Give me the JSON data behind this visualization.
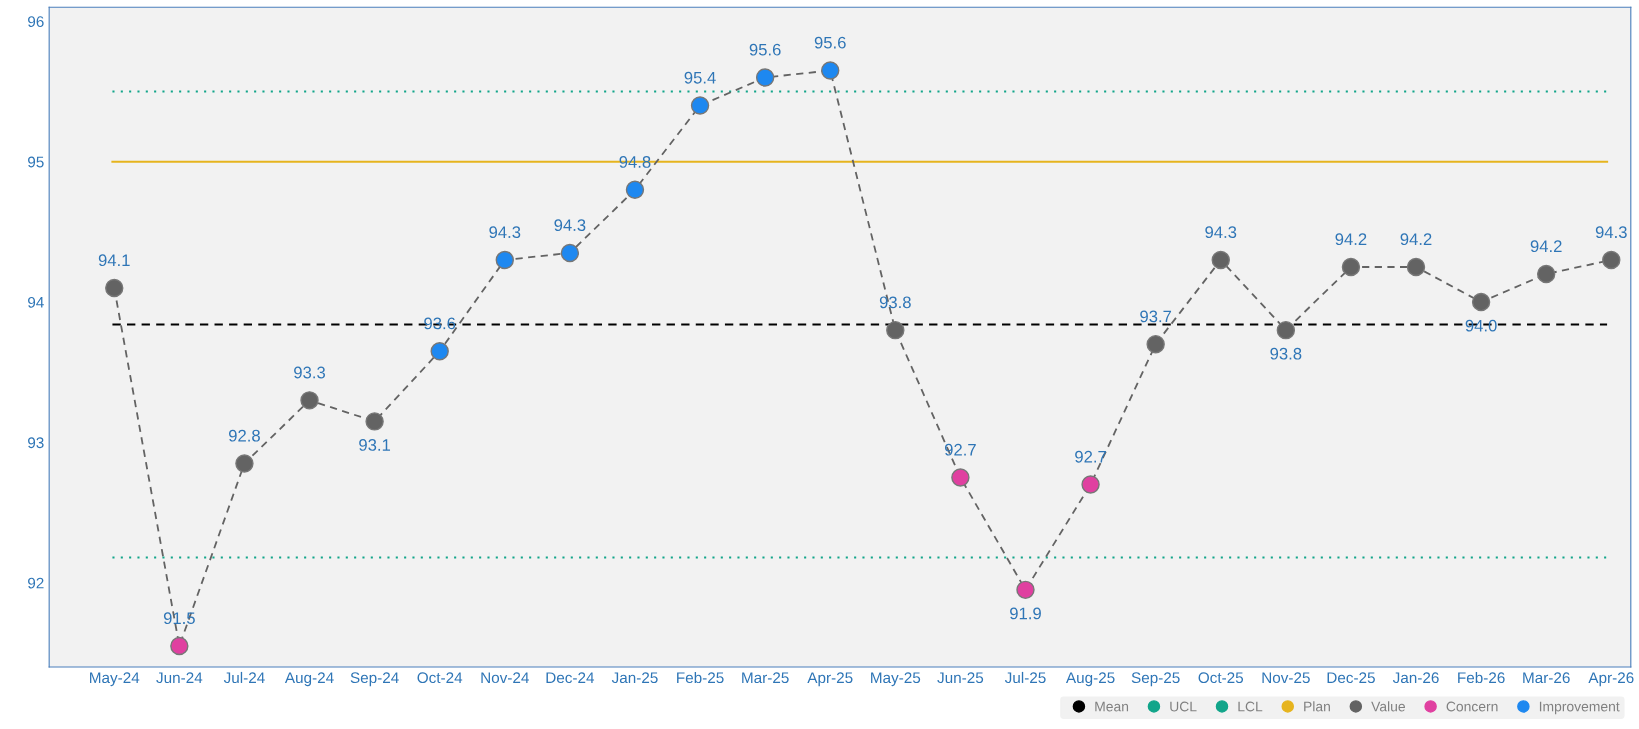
{
  "chart_data": {
    "type": "line",
    "categories": [
      "May-24",
      "Jun-24",
      "Jul-24",
      "Aug-24",
      "Sep-24",
      "Oct-24",
      "Nov-24",
      "Dec-24",
      "Jan-25",
      "Feb-25",
      "Mar-25",
      "Apr-25",
      "May-25",
      "Jun-25",
      "Jul-25",
      "Aug-25",
      "Sep-25",
      "Oct-25",
      "Nov-25",
      "Dec-25",
      "Jan-26",
      "Feb-26",
      "Mar-26",
      "Apr-26"
    ],
    "series": [
      {
        "color": "#636363",
        "line_style": "dashed",
        "values": [
          94.1,
          91.55,
          92.85,
          93.3,
          93.15,
          93.65,
          94.3,
          94.35,
          94.8,
          95.4,
          95.6,
          95.65,
          93.8,
          92.75,
          91.95,
          92.7,
          93.7,
          94.3,
          93.8,
          94.25,
          94.25,
          94.0,
          94.2,
          94.3
        ],
        "value_labels": [
          "94.1",
          "91.5",
          "92.8",
          "93.3",
          "93.1",
          "93.6",
          "94.3",
          "94.3",
          "94.8",
          "95.4",
          "95.6",
          "95.6",
          "93.8",
          "92.7",
          "91.9",
          "92.7",
          "93.7",
          "94.3",
          "93.8",
          "94.2",
          "94.2",
          "94.0",
          "94.2",
          "94.3"
        ]
      },
      {
        "name": "Value",
        "type": "scatter",
        "color": "#636363",
        "marker": "circle",
        "values": [
          94.1,
          null,
          92.85,
          93.3,
          93.15,
          null,
          null,
          null,
          null,
          null,
          null,
          null,
          93.8,
          null,
          null,
          null,
          93.7,
          94.3,
          93.8,
          94.25,
          94.25,
          94.0,
          94.2,
          94.3
        ]
      },
      {
        "name": "Concern",
        "type": "scatter",
        "color": "#e040a0",
        "marker": "circle",
        "values": [
          null,
          91.55,
          null,
          null,
          null,
          null,
          null,
          null,
          null,
          null,
          null,
          null,
          null,
          92.75,
          91.95,
          92.7,
          null,
          null,
          null,
          null,
          null,
          null,
          null,
          null
        ]
      },
      {
        "name": "Improvement",
        "type": "scatter",
        "color": "#1e88f0",
        "marker": "circle",
        "values": [
          null,
          null,
          null,
          null,
          null,
          93.65,
          94.3,
          94.35,
          94.8,
          95.4,
          95.6,
          95.65,
          null,
          null,
          null,
          null,
          null,
          null,
          null,
          null,
          null,
          null,
          null,
          null
        ]
      }
    ],
    "ref_lines": [
      {
        "axis": "y",
        "value": 93.84,
        "label": "Mean",
        "color": "#000000",
        "line_style": "dashed"
      },
      {
        "axis": "y",
        "value": 95.5,
        "label": "UCL",
        "color": "#12a58a",
        "line_style": "dotted"
      },
      {
        "axis": "y",
        "value": 92.18,
        "label": "LCL",
        "color": "#12a58a",
        "line_style": "dotted"
      },
      {
        "axis": "y",
        "value": 95.0,
        "label": "Plan",
        "color": "#e6b41e",
        "line_style": "solid"
      }
    ],
    "ylim": [
      91.4,
      96.1
    ],
    "yticks": [
      92,
      93,
      94,
      95,
      96
    ],
    "grid": false,
    "legend": "bottom right"
  }
}
